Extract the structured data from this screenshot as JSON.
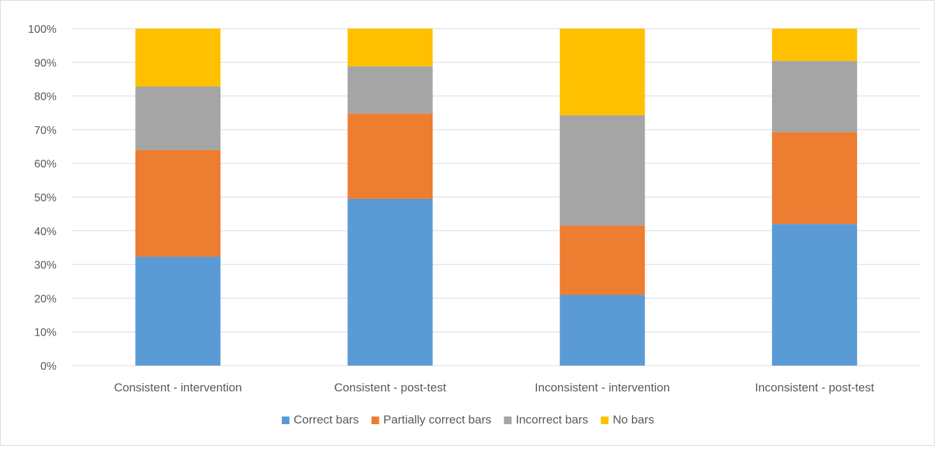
{
  "chart_data": {
    "type": "bar",
    "stacked": true,
    "percent_stacked": true,
    "categories": [
      "Consistent - intervention",
      "Consistent - post-test",
      "Inconsistent - intervention",
      "Inconsistent - post-test"
    ],
    "series": [
      {
        "name": "Correct bars",
        "color": "#5B9BD5",
        "values": [
          32.3,
          49.5,
          21.0,
          42.0
        ]
      },
      {
        "name": "Partially correct bars",
        "color": "#ED7D31",
        "values": [
          31.7,
          25.3,
          20.5,
          27.3
        ]
      },
      {
        "name": "Incorrect bars",
        "color": "#A5A5A5",
        "values": [
          18.8,
          14.0,
          32.8,
          21.1
        ]
      },
      {
        "name": "No bars",
        "color": "#FFC000",
        "values": [
          17.2,
          11.2,
          25.7,
          9.6
        ]
      }
    ],
    "y_ticks": [
      "0%",
      "10%",
      "20%",
      "30%",
      "40%",
      "50%",
      "60%",
      "70%",
      "80%",
      "90%",
      "100%"
    ],
    "ylim": [
      0,
      100
    ],
    "grid": true,
    "legend_position": "bottom",
    "title": "",
    "xlabel": "",
    "ylabel": ""
  }
}
